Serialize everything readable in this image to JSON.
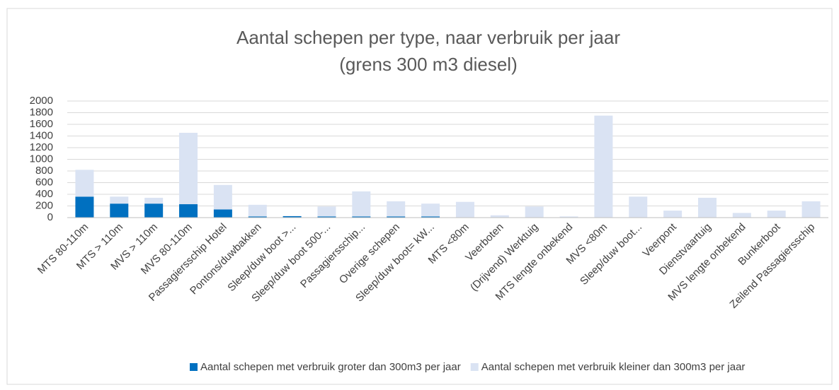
{
  "chart_data": {
    "type": "stacked_bar",
    "title": "Aantal schepen per type, naar verbruik per jaar",
    "subtitle": "(grens 300 m3 diesel)",
    "categories": [
      "MTS 80-110m",
      "MTS > 110m",
      "MVS > 110m",
      "MVS 80-110m",
      "Passagiersschip Hotel",
      "Pontons/duwbakken",
      "Sleep/duw boot >...",
      "Sleep/duw boot 500-...",
      "Passagiersschip...",
      "Overige schepen",
      "Sleep/duw boot= kW...",
      "MTS <80m",
      "Veerboten",
      "(Drijvend) Werktuig",
      "MTS lengte onbekend",
      "MVS <80m",
      "Sleep/duw boot...",
      "Veerpont",
      "Dienstvaartuig",
      "MVS lengte onbekend",
      "Bunkerboot",
      "Zeilend Passagiersschip"
    ],
    "series": [
      {
        "name": "Aantal schepen met verbruik groter dan 300m3 per jaar",
        "color": "#0070c0",
        "values": [
          360,
          240,
          240,
          230,
          140,
          20,
          25,
          20,
          20,
          20,
          20,
          0,
          0,
          0,
          0,
          0,
          0,
          0,
          0,
          0,
          0,
          0
        ]
      },
      {
        "name": "Aantal schepen met verbruik kleiner dan 300m3 per jaar",
        "color": "#dae3f3",
        "values": [
          460,
          120,
          100,
          1225,
          420,
          200,
          5,
          170,
          430,
          260,
          220,
          270,
          40,
          190,
          20,
          1750,
          360,
          120,
          340,
          80,
          120,
          280
        ]
      }
    ],
    "ylim": [
      0,
      2000
    ],
    "yticks": [
      0,
      200,
      400,
      600,
      800,
      1000,
      1200,
      1400,
      1600,
      1800,
      2000
    ],
    "grid": true,
    "legend": "bottom"
  }
}
